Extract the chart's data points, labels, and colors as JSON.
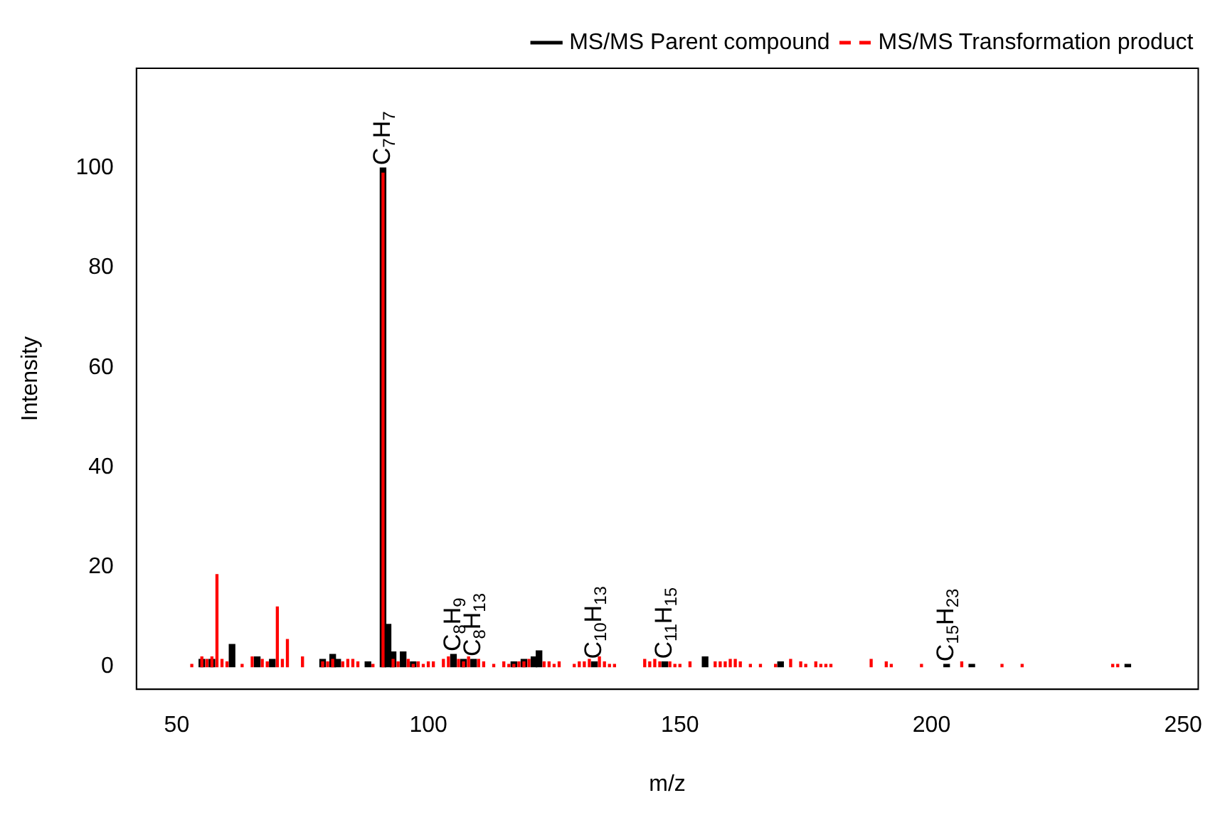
{
  "chart_data": {
    "type": "bar",
    "xlabel": "m/z",
    "ylabel": "Intensity",
    "xlim": [
      42,
      253
    ],
    "xticks": [
      50,
      100,
      150,
      200,
      250
    ],
    "ylim": [
      -4.5,
      120
    ],
    "yticks": [
      0,
      20,
      40,
      60,
      80,
      100
    ],
    "grid": false,
    "legend": "top right",
    "series": [
      {
        "name": "MS/MS Parent compound",
        "color": "#000000",
        "line_style": "solid",
        "x": [
          55,
          57,
          61,
          66,
          69,
          79,
          81,
          82,
          88,
          91,
          92,
          93,
          95,
          97,
          105,
          107,
          109,
          117,
          119,
          121,
          122,
          133,
          147,
          155,
          170,
          203,
          208,
          239
        ],
        "values": [
          1.5,
          1.5,
          4.5,
          2,
          1.5,
          1.5,
          2.5,
          1.5,
          1,
          100,
          8.5,
          3,
          3,
          1,
          2.5,
          1.5,
          1.5,
          1,
          1.5,
          2,
          3.2,
          1,
          1,
          2,
          1,
          0.5,
          0.5,
          0.5
        ]
      },
      {
        "name": "MS/MS Transformation product",
        "color": "#ff0000",
        "line_style": "dashed",
        "x": [
          53,
          55,
          56,
          57,
          58,
          59,
          60,
          63,
          65,
          67,
          68,
          70,
          71,
          72,
          75,
          79,
          80,
          81,
          83,
          84,
          85,
          86,
          89,
          91,
          93,
          94,
          96,
          97,
          98,
          99,
          100,
          101,
          103,
          104,
          106,
          107,
          108,
          110,
          111,
          113,
          115,
          116,
          117,
          118,
          119,
          120,
          123,
          124,
          125,
          126,
          129,
          130,
          131,
          132,
          134,
          135,
          136,
          137,
          143,
          144,
          145,
          146,
          148,
          149,
          150,
          152,
          157,
          158,
          159,
          160,
          161,
          162,
          164,
          166,
          169,
          172,
          174,
          175,
          177,
          178,
          179,
          180,
          188,
          191,
          192,
          198,
          206,
          214,
          218,
          236,
          237
        ],
        "values": [
          0.5,
          2,
          1.5,
          2,
          18.5,
          1.5,
          1,
          0.5,
          2,
          1.5,
          1,
          12,
          1.5,
          5.5,
          2,
          1,
          1,
          1.5,
          1,
          1.5,
          1.5,
          1,
          0.5,
          99,
          1.5,
          1,
          1.5,
          0.5,
          1,
          0.5,
          1,
          1,
          1.5,
          2,
          1.5,
          1,
          2,
          1.5,
          1,
          0.5,
          1,
          0.5,
          0.5,
          1,
          1,
          1.5,
          1,
          1,
          0.5,
          1,
          0.5,
          1,
          1,
          1.5,
          2,
          1,
          0.5,
          0.5,
          1.5,
          1,
          1.5,
          1,
          1,
          0.5,
          0.5,
          1,
          1,
          1,
          1,
          1.5,
          1.5,
          1,
          0.5,
          0.5,
          0.5,
          1.5,
          1,
          0.5,
          1,
          0.5,
          0.5,
          0.5,
          1.5,
          1,
          0.5,
          0.5,
          1,
          0.5,
          0.5,
          0.5,
          0.5
        ]
      }
    ],
    "annotations": [
      {
        "text": "C$_{7}$H$_{7}$",
        "x": 91,
        "y": 100
      },
      {
        "text": "C$_{8}$H$_{9}$",
        "x": 105,
        "y": 2.5
      },
      {
        "text": "C$_{8}$H$_{13}$",
        "x": 109,
        "y": 1.5
      },
      {
        "text": "C$_{10}$H$_{13}$",
        "x": 133,
        "y": 1
      },
      {
        "text": "C$_{11}$H$_{15}$",
        "x": 147,
        "y": 1
      },
      {
        "text": "C$_{15}$H$_{23}$",
        "x": 203,
        "y": 0.5
      }
    ]
  }
}
